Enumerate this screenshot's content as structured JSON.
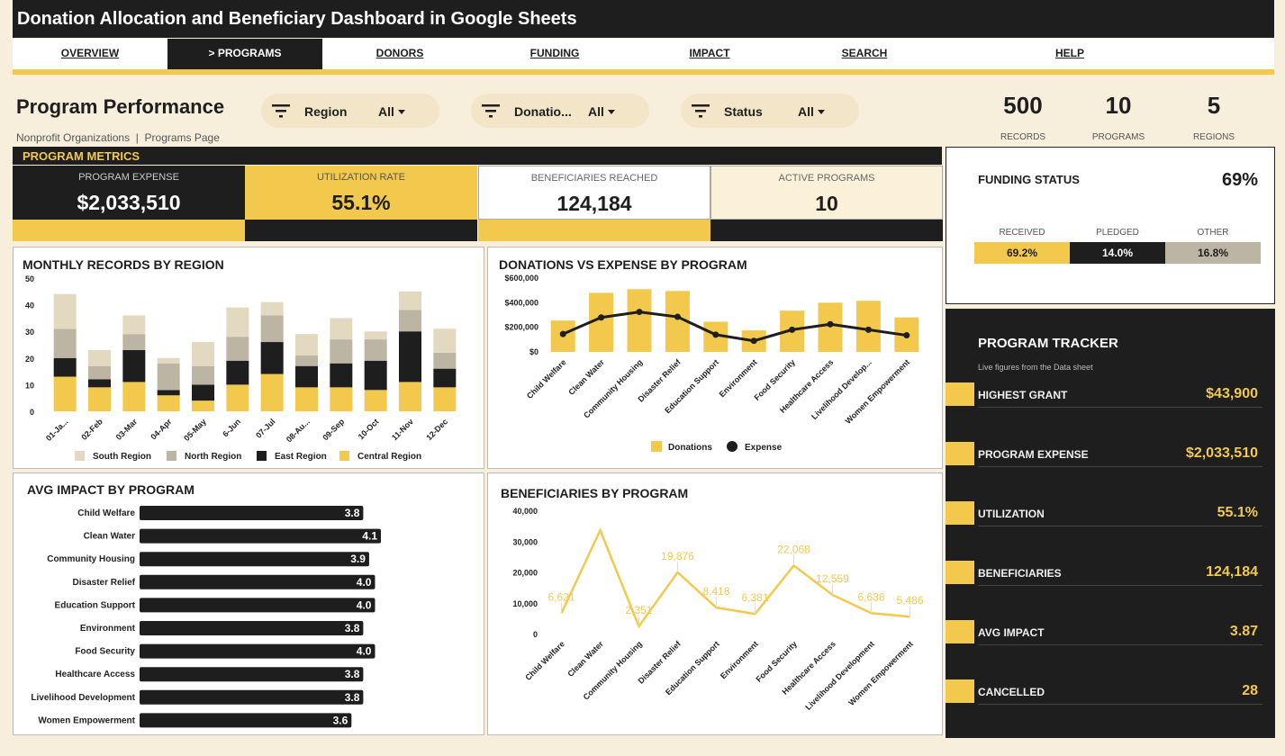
{
  "app": {
    "title": "Donation Allocation and Beneficiary Dashboard in Google Sheets"
  },
  "nav": {
    "items": [
      {
        "label": "OVERVIEW"
      },
      {
        "label": "> PROGRAMS"
      },
      {
        "label": "DONORS"
      },
      {
        "label": "FUNDING"
      },
      {
        "label": "IMPACT"
      },
      {
        "label": "SEARCH"
      },
      {
        "label": "HELP"
      }
    ]
  },
  "page": {
    "title": "Program Performance",
    "subtitle": "Nonprofit Organizations  |  Programs Page"
  },
  "filters": [
    {
      "label": "Region",
      "value": "All",
      "icon": "filter-icon"
    },
    {
      "label": "Donatio...",
      "value": "All",
      "icon": "filter-icon"
    },
    {
      "label": "Status",
      "value": "All",
      "icon": "filter-icon"
    }
  ],
  "kpis": [
    {
      "value": "500",
      "label": "RECORDS"
    },
    {
      "value": "10",
      "label": "PROGRAMS"
    },
    {
      "value": "5",
      "label": "REGIONS"
    }
  ],
  "metrics": {
    "title": "PROGRAM METRICS",
    "cards": [
      {
        "label": "PROGRAM EXPENSE",
        "value": "$2,033,510"
      },
      {
        "label": "UTILIZATION RATE",
        "value": "55.1%"
      },
      {
        "label": "BENEFICIARIES REACHED",
        "value": "124,184"
      },
      {
        "label": "ACTIVE PROGRAMS",
        "value": "10"
      }
    ]
  },
  "funding": {
    "title": "FUNDING STATUS",
    "pct": "69%",
    "segments": [
      {
        "label": "RECEIVED",
        "value": "69.2%",
        "share": 0.35
      },
      {
        "label": "PLEDGED",
        "value": "14.0%",
        "share": 0.33
      },
      {
        "label": "OTHER",
        "value": "16.8%",
        "share": 0.32
      }
    ]
  },
  "tracker": {
    "title": "PROGRAM TRACKER",
    "subtitle": "Live figures from the Data sheet",
    "rows": [
      {
        "label": "HIGHEST GRANT",
        "value": "$43,900"
      },
      {
        "label": "PROGRAM EXPENSE",
        "value": "$2,033,510"
      },
      {
        "label": "UTILIZATION",
        "value": "55.1%"
      },
      {
        "label": "BENEFICIARIES",
        "value": "124,184"
      },
      {
        "label": "AVG IMPACT",
        "value": "3.87"
      },
      {
        "label": "CANCELLED",
        "value": "28"
      }
    ]
  },
  "colors": {
    "accent": "#f2c94c",
    "dark": "#1e1e1e",
    "cream": "#f7eedb",
    "south": "#e3d9c0",
    "north": "#bdb5a4",
    "other": "#bdb5a4"
  },
  "chart_data": [
    {
      "type": "bar",
      "title": "MONTHLY RECORDS BY REGION",
      "stacked": true,
      "categories": [
        "01-Ja...",
        "02-Feb",
        "03-Mar",
        "04-Apr",
        "05-May",
        "6-Jun",
        "07-Jul",
        "08-Au...",
        "09-Sep",
        "10-Oct",
        "11-Nov",
        "12-Dec"
      ],
      "ylim": [
        0,
        50
      ],
      "yticks": [
        "0",
        "10",
        "20",
        "30",
        "40",
        "50"
      ],
      "series": [
        {
          "name": "Central Region",
          "values": [
            13,
            9,
            11,
            6,
            4,
            10,
            14,
            9,
            9,
            8,
            11,
            9
          ]
        },
        {
          "name": "East Region",
          "values": [
            7,
            3,
            12,
            2,
            6,
            9,
            12,
            8,
            9,
            11,
            19,
            7
          ]
        },
        {
          "name": "North Region",
          "values": [
            11,
            5,
            6,
            10,
            7,
            9,
            10,
            4,
            9,
            8,
            8,
            6
          ]
        },
        {
          "name": "South Region",
          "values": [
            13,
            6,
            7,
            2,
            9,
            11,
            5,
            8,
            8,
            3,
            7,
            9
          ]
        }
      ],
      "legend": [
        "South Region",
        "North Region",
        "East Region",
        "Central Region"
      ]
    },
    {
      "type": "bar",
      "title": "DONATIONS VS EXPENSE BY PROGRAM",
      "categories": [
        "Child Welfare",
        "Clean Water",
        "Community Housing",
        "Disaster Relief",
        "Education Support",
        "Environment",
        "Food Security",
        "Healthcare Access",
        "Livelihood Develop...",
        "Women Empowerment"
      ],
      "ylim": [
        0,
        600000
      ],
      "yticks": [
        "$0",
        "$200,000",
        "$400,000",
        "$600,000"
      ],
      "series": [
        {
          "name": "Donations",
          "type": "bar",
          "values": [
            255000,
            480000,
            510000,
            495000,
            245000,
            175000,
            335000,
            400000,
            415000,
            280000
          ]
        },
        {
          "name": "Expense",
          "type": "line",
          "values": [
            145000,
            280000,
            325000,
            285000,
            140000,
            90000,
            180000,
            225000,
            180000,
            135000
          ]
        }
      ]
    },
    {
      "type": "bar",
      "orientation": "horizontal",
      "title": "AVG IMPACT BY PROGRAM",
      "categories": [
        "Child Welfare",
        "Clean Water",
        "Community Housing",
        "Disaster Relief",
        "Education Support",
        "Environment",
        "Food Security",
        "Healthcare Access",
        "Livelihood Development",
        "Women Empowerment"
      ],
      "values": [
        3.8,
        4.1,
        3.9,
        4.0,
        4.0,
        3.8,
        4.0,
        3.8,
        3.8,
        3.6
      ],
      "labels": [
        "3.8",
        "4.1",
        "3.9",
        "4.0",
        "4.0",
        "3.8",
        "4.0",
        "3.8",
        "3.8",
        "3.6"
      ]
    },
    {
      "type": "line",
      "title": "BENEFICIARIES BY PROGRAM",
      "categories": [
        "Child Welfare",
        "Clean Water",
        "Community Housing",
        "Disaster Relief",
        "Education Support",
        "Environment",
        "Food Security",
        "Healthcare Access",
        "Livelihood Development",
        "Women Empowerment"
      ],
      "ylim": [
        0,
        40000
      ],
      "yticks": [
        "0",
        "10,000",
        "20,000",
        "30,000",
        "40,000"
      ],
      "values": [
        6621,
        33500,
        2351,
        19876,
        8418,
        6381,
        22068,
        12559,
        6638,
        5486
      ],
      "labels": [
        "6,621",
        "",
        "2,351",
        "19,876",
        "8,418",
        "6,381",
        "22,068",
        "12,559",
        "6,638",
        "5,486"
      ]
    }
  ]
}
